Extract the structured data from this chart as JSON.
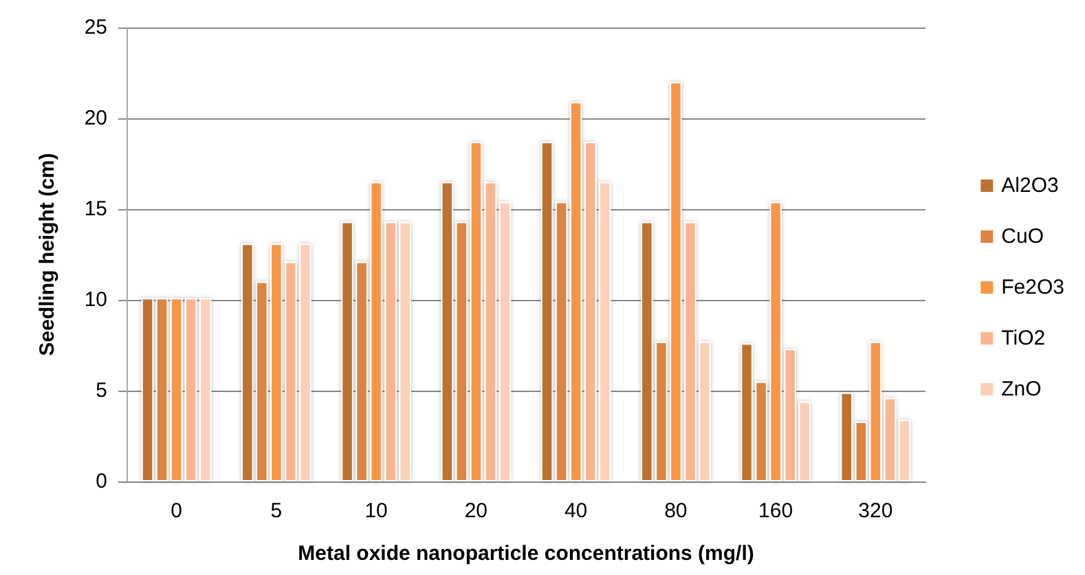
{
  "chart_data": {
    "type": "bar",
    "xlabel": "Metal oxide nanoparticle concentrations (mg/l)",
    "ylabel": "Seedling height (cm)",
    "categories": [
      "0",
      "5",
      "10",
      "20",
      "40",
      "80",
      "160",
      "320"
    ],
    "series": [
      {
        "name": "Al2O3",
        "color": "#bd7232",
        "values": [
          10.1,
          13.1,
          14.3,
          16.5,
          18.7,
          14.3,
          7.6,
          4.9
        ]
      },
      {
        "name": "CuO",
        "color": "#dd8540",
        "values": [
          10.1,
          11.0,
          12.1,
          14.3,
          15.4,
          7.7,
          5.5,
          3.3
        ]
      },
      {
        "name": "Fe2O3",
        "color": "#f79646",
        "values": [
          10.1,
          13.1,
          16.5,
          18.7,
          20.9,
          22.0,
          15.4,
          7.7
        ]
      },
      {
        "name": "TiO2",
        "color": "#fab58e",
        "values": [
          10.1,
          12.1,
          14.3,
          16.5,
          18.7,
          14.3,
          7.3,
          4.6
        ]
      },
      {
        "name": "ZnO",
        "color": "#fcd0b8",
        "values": [
          10.1,
          13.1,
          14.3,
          15.4,
          16.5,
          7.7,
          4.4,
          3.4
        ]
      }
    ],
    "ylim": [
      0,
      25
    ],
    "yticks": [
      0,
      5,
      10,
      15,
      20,
      25
    ],
    "grid": "y",
    "legend": "right"
  }
}
